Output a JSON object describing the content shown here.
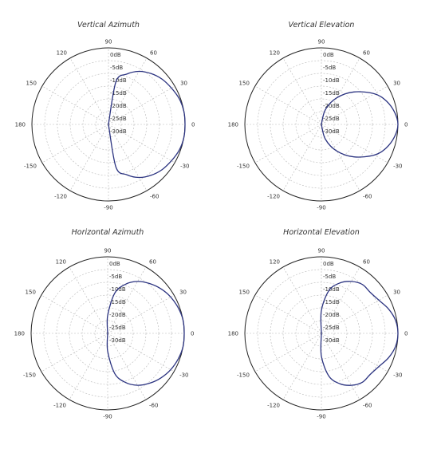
{
  "colors": {
    "outer": "#222222",
    "grid": "#b8b8b8",
    "trace": "#2b3380",
    "text": "#333333"
  },
  "chart_data": [
    {
      "type": "polar",
      "title": "Vertical Azimuth",
      "angle_ticks": [
        "0",
        "30",
        "60",
        "90",
        "120",
        "150",
        "180",
        "-150",
        "-120",
        "-90",
        "-60",
        "-30"
      ],
      "db_ticks": [
        "0dB",
        "-5dB",
        "-10dB",
        "-15dB",
        "-20dB",
        "-25dB",
        "-30dB"
      ],
      "r_range_db": [
        -30,
        0
      ],
      "series": [
        {
          "angles_deg": [
            -90,
            -80,
            -70,
            -60,
            -50,
            -40,
            -30,
            -20,
            -10,
            0,
            10,
            20,
            30,
            40,
            50,
            60,
            70,
            80,
            90
          ],
          "values_db": [
            -30,
            -13,
            -9,
            -6,
            -4,
            -2.5,
            -1.5,
            -0.5,
            0,
            0,
            0,
            -0.5,
            -1.5,
            -2.5,
            -4,
            -6,
            -9,
            -13,
            -30
          ]
        }
      ]
    },
    {
      "type": "polar",
      "title": "Vertical Elevation",
      "angle_ticks": [
        "0",
        "30",
        "60",
        "90",
        "120",
        "150",
        "180",
        "-150",
        "-120",
        "-90",
        "-60",
        "-30"
      ],
      "db_ticks": [
        "0dB",
        "-5dB",
        "-10dB",
        "-15dB",
        "-20dB",
        "-25dB",
        "-30dB"
      ],
      "r_range_db": [
        -30,
        0
      ],
      "series": [
        {
          "angles_deg": [
            -90,
            -75,
            -60,
            -45,
            -30,
            -20,
            -10,
            0,
            10,
            20,
            30,
            45,
            60,
            75,
            90
          ],
          "values_db": [
            -30,
            -24,
            -18,
            -12,
            -6,
            -3,
            -1,
            0,
            -1,
            -3,
            -6,
            -12,
            -18,
            -24,
            -30
          ]
        }
      ]
    },
    {
      "type": "polar",
      "title": "Horizontal Azimuth",
      "angle_ticks": [
        "0",
        "30",
        "60",
        "90",
        "120",
        "150",
        "180",
        "-150",
        "-120",
        "-90",
        "-60",
        "-30"
      ],
      "db_ticks": [
        "0dB",
        "-5dB",
        "-10dB",
        "-15dB",
        "-20dB",
        "-25dB",
        "-30dB"
      ],
      "r_range_db": [
        -30,
        0
      ],
      "series": [
        {
          "angles_deg": [
            -95,
            -90,
            -80,
            -70,
            -60,
            -50,
            -40,
            -30,
            -20,
            -10,
            0,
            10,
            20,
            30,
            40,
            50,
            60,
            70,
            80,
            90,
            95
          ],
          "values_db": [
            -30,
            -23,
            -14,
            -9.5,
            -6.5,
            -4.5,
            -2.8,
            -1.5,
            -0.6,
            0,
            0,
            0,
            -0.6,
            -1.5,
            -2.8,
            -4.5,
            -6.5,
            -9.5,
            -14,
            -23,
            -30
          ]
        }
      ]
    },
    {
      "type": "polar",
      "title": "Horizontal Elevation",
      "angle_ticks": [
        "0",
        "30",
        "60",
        "90",
        "120",
        "150",
        "180",
        "-150",
        "-120",
        "-90",
        "-60",
        "-30"
      ],
      "db_ticks": [
        "0dB",
        "-5dB",
        "-10dB",
        "-15dB",
        "-20dB",
        "-25dB",
        "-30dB"
      ],
      "r_range_db": [
        -30,
        0
      ],
      "series": [
        {
          "angles_deg": [
            -110,
            -90,
            -80,
            -70,
            -60,
            -50,
            -40,
            -30,
            -20,
            -10,
            0,
            10,
            20,
            30,
            40,
            50,
            60,
            70,
            80,
            90,
            110
          ],
          "values_db": [
            -30,
            -21,
            -13,
            -9,
            -6.5,
            -5,
            -5,
            -4,
            -2,
            -0.5,
            0,
            -0.5,
            -2,
            -4,
            -5,
            -5,
            -6.5,
            -9,
            -13,
            -21,
            -30
          ]
        }
      ]
    }
  ]
}
